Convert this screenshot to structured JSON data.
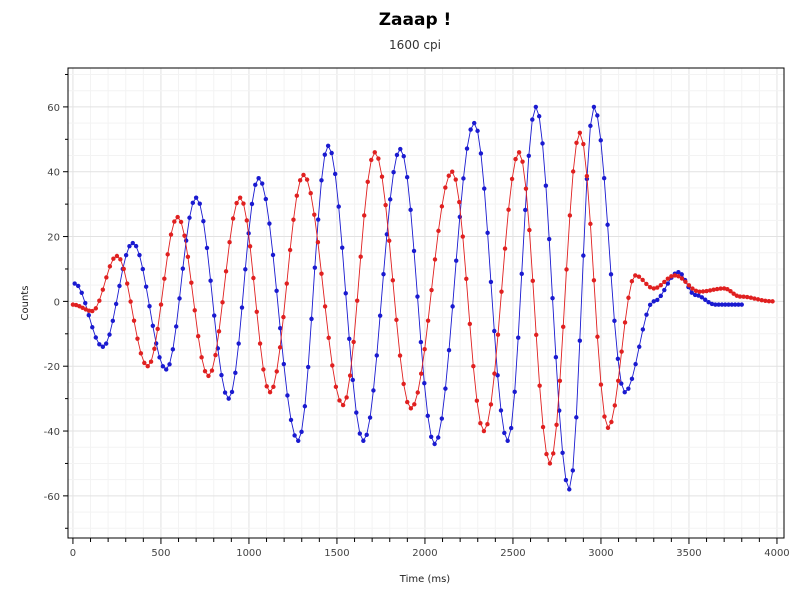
{
  "chart_data": {
    "type": "scatter",
    "title": "Zaaap !",
    "subtitle": "1600 cpi",
    "xlabel": "Time (ms)",
    "ylabel": "Counts",
    "xlim": [
      -28,
      4040
    ],
    "ylim": [
      -73,
      72
    ],
    "xticks": [
      0,
      500,
      1000,
      1500,
      2000,
      2500,
      3000,
      3500,
      4000
    ],
    "yticks": [
      -60,
      -40,
      -20,
      0,
      20,
      40,
      60
    ],
    "grid": true,
    "legend": "none",
    "series": [
      {
        "color": "#1a1ad0",
        "points": [
          [
            10,
            5.5
          ],
          [
            170,
            -14
          ],
          [
            340,
            18
          ],
          [
            530,
            -21
          ],
          [
            700,
            32
          ],
          [
            885,
            -30
          ],
          [
            1055,
            38
          ],
          [
            1280,
            -43
          ],
          [
            1450,
            48
          ],
          [
            1650,
            -43
          ],
          [
            1860,
            47
          ],
          [
            2055,
            -44
          ],
          [
            2280,
            55
          ],
          [
            2470,
            -43
          ],
          [
            2630,
            60
          ],
          [
            2820,
            -58
          ],
          [
            2960,
            60
          ],
          [
            3135,
            -28
          ],
          [
            3300,
            0
          ],
          [
            3440,
            9
          ],
          [
            3535,
            2
          ],
          [
            3650,
            -1
          ],
          [
            3800,
            -1
          ]
        ]
      },
      {
        "color": "#e02020",
        "points": [
          [
            0,
            -1
          ],
          [
            110,
            -3
          ],
          [
            250,
            14
          ],
          [
            425,
            -20
          ],
          [
            595,
            26
          ],
          [
            770,
            -23
          ],
          [
            950,
            32
          ],
          [
            1120,
            -28
          ],
          [
            1310,
            39
          ],
          [
            1535,
            -32
          ],
          [
            1715,
            46
          ],
          [
            1920,
            -33
          ],
          [
            2155,
            40
          ],
          [
            2335,
            -40
          ],
          [
            2535,
            46
          ],
          [
            2710,
            -50
          ],
          [
            2880,
            52
          ],
          [
            3040,
            -39
          ],
          [
            3195,
            8
          ],
          [
            3300,
            4
          ],
          [
            3420,
            8
          ],
          [
            3560,
            3
          ],
          [
            3700,
            4
          ],
          [
            3790,
            1.5
          ],
          [
            3975,
            0
          ]
        ]
      }
    ]
  }
}
